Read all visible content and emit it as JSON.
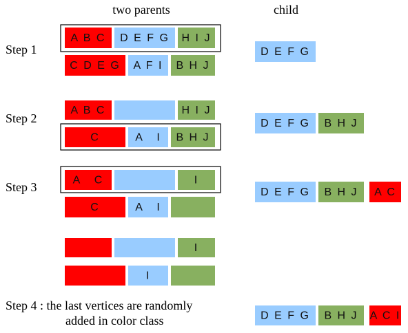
{
  "headers": {
    "parents": "two parents",
    "child": "child"
  },
  "steps": [
    "Step 1",
    "Step 2",
    "Step 3"
  ],
  "step4": [
    "Step 4 : the last vertices are randomly",
    "added in color class"
  ],
  "parents": [
    [
      "A B C",
      "D E F G",
      "H I J"
    ],
    [
      "C D E G",
      "A F I",
      "B H J"
    ],
    [
      "A B C",
      "H I J"
    ],
    [
      "C",
      "A   I",
      "B H J"
    ],
    [
      "A   C",
      "I"
    ],
    [
      "C",
      "A   I"
    ],
    [
      "I"
    ],
    [
      "I"
    ]
  ],
  "children": [
    [
      "D E F G"
    ],
    [
      "D E F G",
      "B H J"
    ],
    [
      "D E F G",
      "B H J",
      "A C"
    ],
    [
      "D E F G",
      "B H J",
      "A C I"
    ]
  ]
}
